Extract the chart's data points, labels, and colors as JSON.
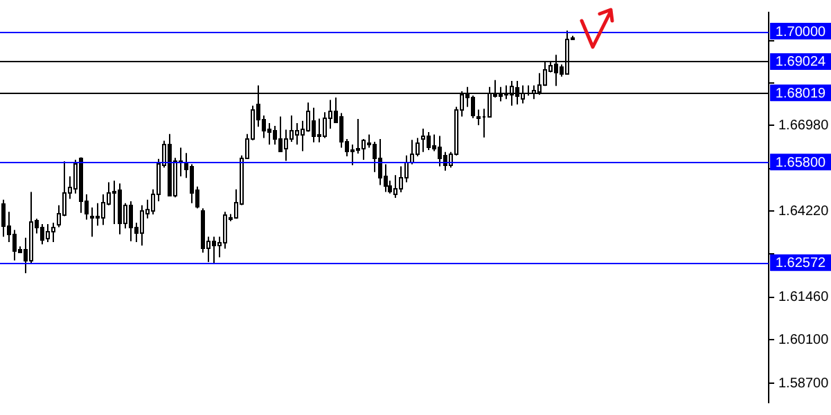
{
  "chart_data": {
    "type": "candlestick",
    "categories": [
      null,
      null,
      null,
      null,
      null,
      null,
      null,
      null,
      null,
      null,
      null,
      null,
      null,
      null,
      null,
      null,
      null,
      null,
      null,
      null,
      null,
      null,
      null,
      null,
      null,
      null,
      null,
      null,
      null,
      null,
      null,
      null,
      null,
      null,
      null,
      null,
      null,
      null,
      null,
      null,
      null,
      null,
      null,
      null,
      null,
      null,
      null,
      null,
      null,
      null,
      null,
      null,
      null,
      null,
      null,
      null,
      null,
      null,
      null,
      null,
      null,
      null,
      null,
      null,
      null,
      null,
      null,
      null,
      null,
      null,
      null,
      null,
      null,
      null,
      null,
      null,
      null,
      null,
      null,
      null,
      null,
      null,
      null,
      null,
      null,
      null,
      null,
      null,
      null,
      null,
      null,
      null,
      null,
      null,
      null,
      null,
      null,
      null,
      null,
      null,
      null,
      null,
      null,
      null,
      null,
      null,
      null,
      null,
      null,
      null,
      null,
      null,
      null,
      null,
      null,
      null,
      null,
      null,
      null,
      null,
      null,
      null,
      null,
      null,
      null,
      null,
      null,
      null,
      null,
      null,
      null,
      null,
      null,
      null,
      null,
      null,
      null,
      null,
      null
    ],
    "ohlc": [
      [
        1.6448,
        1.6459,
        1.634,
        1.6378
      ],
      [
        1.6376,
        1.642,
        1.6323,
        1.6348
      ],
      [
        1.6351,
        1.6362,
        1.6264,
        1.6298
      ],
      [
        1.6301,
        1.6309,
        1.6288,
        1.6292
      ],
      [
        1.6301,
        1.6337,
        1.6223,
        1.6264
      ],
      [
        1.6264,
        1.6484,
        1.6256,
        1.639
      ],
      [
        1.6392,
        1.6398,
        1.6351,
        1.637
      ],
      [
        1.637,
        1.6381,
        1.6316,
        1.6334
      ],
      [
        1.6337,
        1.6381,
        1.6323,
        1.6358
      ],
      [
        1.6358,
        1.6385,
        1.6323,
        1.6371
      ],
      [
        1.6381,
        1.6441,
        1.6371,
        1.6417
      ],
      [
        1.6412,
        1.6582,
        1.6406,
        1.6484
      ],
      [
        1.6481,
        1.6534,
        1.6462,
        1.6501
      ],
      [
        1.6498,
        1.6587,
        1.6479,
        1.6576
      ],
      [
        1.6595,
        1.6595,
        1.6417,
        1.6454
      ],
      [
        1.6454,
        1.6476,
        1.6395,
        1.6417
      ],
      [
        1.6409,
        1.6434,
        1.634,
        1.6403
      ],
      [
        1.6403,
        1.6448,
        1.6376,
        1.6409
      ],
      [
        1.6403,
        1.6476,
        1.6378,
        1.6451
      ],
      [
        1.6448,
        1.6515,
        1.6441,
        1.6484
      ],
      [
        1.6481,
        1.652,
        1.6381,
        1.6487
      ],
      [
        1.649,
        1.6511,
        1.6348,
        1.6387
      ],
      [
        1.6387,
        1.6448,
        1.6367,
        1.6442
      ],
      [
        1.6442,
        1.6454,
        1.6326,
        1.637
      ],
      [
        1.6373,
        1.6385,
        1.6323,
        1.6353
      ],
      [
        1.6353,
        1.6441,
        1.6312,
        1.6426
      ],
      [
        1.6417,
        1.6459,
        1.6399,
        1.6431
      ],
      [
        1.6426,
        1.6492,
        1.6412,
        1.6479
      ],
      [
        1.6479,
        1.659,
        1.6454,
        1.6576
      ],
      [
        1.6573,
        1.6648,
        1.6562,
        1.664
      ],
      [
        1.664,
        1.667,
        1.6476,
        1.6476
      ],
      [
        1.6476,
        1.6593,
        1.6467,
        1.6587
      ],
      [
        1.6587,
        1.6626,
        1.6534,
        1.6579
      ],
      [
        1.6582,
        1.6609,
        1.6529,
        1.6559
      ],
      [
        1.6565,
        1.6573,
        1.6448,
        1.6484
      ],
      [
        1.649,
        1.6501,
        1.6431,
        1.644
      ],
      [
        1.6426,
        1.6431,
        1.6289,
        1.6306
      ],
      [
        1.6306,
        1.634,
        1.6259,
        1.6328
      ],
      [
        1.6328,
        1.634,
        1.6253,
        1.6312
      ],
      [
        1.6312,
        1.634,
        1.6274,
        1.6323
      ],
      [
        1.6323,
        1.642,
        1.6302,
        1.6412
      ],
      [
        1.6398,
        1.6413,
        1.639,
        1.6403
      ],
      [
        1.6403,
        1.6492,
        1.6398,
        1.6451
      ],
      [
        1.6448,
        1.6601,
        1.6442,
        1.6595
      ],
      [
        1.6595,
        1.667,
        1.6593,
        1.6657
      ],
      [
        1.6657,
        1.6761,
        1.665,
        1.6751
      ],
      [
        1.6768,
        1.6826,
        1.6693,
        1.6718
      ],
      [
        1.6718,
        1.6729,
        1.6657,
        1.6682
      ],
      [
        1.6687,
        1.6705,
        1.6636,
        1.6676
      ],
      [
        1.6682,
        1.6696,
        1.6636,
        1.6654
      ],
      [
        1.6657,
        1.6726,
        1.6612,
        1.6615
      ],
      [
        1.6626,
        1.6684,
        1.6584,
        1.6657
      ],
      [
        1.6657,
        1.6729,
        1.6645,
        1.6684
      ],
      [
        1.6668,
        1.6705,
        1.6636,
        1.6684
      ],
      [
        1.6668,
        1.6712,
        1.6615,
        1.6687
      ],
      [
        1.6684,
        1.6771,
        1.6677,
        1.6743
      ],
      [
        1.6712,
        1.6754,
        1.6643,
        1.6664
      ],
      [
        1.6664,
        1.6719,
        1.6643,
        1.6668
      ],
      [
        1.6665,
        1.674,
        1.6657,
        1.6721
      ],
      [
        1.6721,
        1.6779,
        1.6687,
        1.6743
      ],
      [
        1.6743,
        1.6787,
        1.6705,
        1.6709
      ],
      [
        1.6726,
        1.6737,
        1.6626,
        1.6645
      ],
      [
        1.6645,
        1.6654,
        1.6598,
        1.6618
      ],
      [
        1.662,
        1.6636,
        1.657,
        1.6615
      ],
      [
        1.662,
        1.6718,
        1.6607,
        1.6626
      ],
      [
        1.6623,
        1.6654,
        1.6587,
        1.665
      ],
      [
        1.6643,
        1.6668,
        1.6626,
        1.6637
      ],
      [
        1.6637,
        1.6645,
        1.6548,
        1.6594
      ],
      [
        1.6594,
        1.6654,
        1.6506,
        1.6531
      ],
      [
        1.6534,
        1.6573,
        1.6484,
        1.6506
      ],
      [
        1.6506,
        1.652,
        1.6479,
        1.6487
      ],
      [
        1.6479,
        1.6538,
        1.6465,
        1.6498
      ],
      [
        1.6498,
        1.6566,
        1.6483,
        1.6531
      ],
      [
        1.6531,
        1.6601,
        1.6515,
        1.6579
      ],
      [
        1.6579,
        1.6651,
        1.6573,
        1.6609
      ],
      [
        1.6607,
        1.6657,
        1.6598,
        1.6643
      ],
      [
        1.6657,
        1.6687,
        1.6612,
        1.6664
      ],
      [
        1.6664,
        1.6676,
        1.6618,
        1.6629
      ],
      [
        1.6632,
        1.6668,
        1.6615,
        1.6626
      ],
      [
        1.6629,
        1.6664,
        1.6566,
        1.6595
      ],
      [
        1.6601,
        1.6612,
        1.6552,
        1.6573
      ],
      [
        1.657,
        1.6612,
        1.6562,
        1.6607
      ],
      [
        1.6607,
        1.6757,
        1.6601,
        1.6751
      ],
      [
        1.6751,
        1.6807,
        1.6726,
        1.6796
      ],
      [
        1.6799,
        1.6821,
        1.6757,
        1.6787
      ],
      [
        1.6787,
        1.6793,
        1.6721,
        1.6732
      ],
      [
        1.6721,
        1.6748,
        1.6698,
        1.6729
      ],
      [
        1.6726,
        1.6751,
        1.6659,
        1.6729
      ],
      [
        1.6726,
        1.6821,
        1.6723,
        1.6801
      ],
      [
        1.6801,
        1.6843,
        1.6787,
        1.6793
      ],
      [
        1.6793,
        1.6821,
        1.6775,
        1.6799
      ],
      [
        1.6801,
        1.6826,
        1.6782,
        1.6796
      ],
      [
        1.6796,
        1.684,
        1.6761,
        1.6824
      ],
      [
        1.6821,
        1.684,
        1.6765,
        1.6793
      ],
      [
        1.6785,
        1.6826,
        1.6768,
        1.6804
      ],
      [
        1.6801,
        1.6826,
        1.6793,
        1.6804
      ],
      [
        1.6804,
        1.6826,
        1.6782,
        1.681
      ],
      [
        1.6807,
        1.6865,
        1.6796,
        1.6831
      ],
      [
        1.6829,
        1.69,
        1.6824,
        1.6876
      ],
      [
        1.6874,
        1.6904,
        1.6868,
        1.6893
      ],
      [
        1.6896,
        1.6924,
        1.6824,
        1.6871
      ],
      [
        1.6888,
        1.6893,
        1.6854,
        1.6865
      ],
      [
        1.6865,
        1.7002,
        1.6865,
        1.6977
      ],
      [
        1.6977,
        1.6985,
        1.6971,
        1.6979
      ],
      null,
      null,
      null,
      null,
      null,
      null,
      null,
      null,
      null,
      null,
      null,
      null,
      null,
      null,
      null,
      null,
      null,
      null,
      null,
      null,
      null,
      null,
      null,
      null,
      null,
      null,
      null,
      null,
      null,
      null,
      null,
      null,
      null,
      null,
      null
    ],
    "ylim": [
      1.5808,
      1.706
    ],
    "yticks": [
      {
        "value": 1.587,
        "label": "1.58700"
      },
      {
        "value": 1.601,
        "label": "1.60100"
      },
      {
        "value": 1.6146,
        "label": "1.61460"
      },
      {
        "value": 1.6286,
        "label": null
      },
      {
        "value": 1.6422,
        "label": "1.64220"
      },
      {
        "value": 1.6558,
        "label": null
      },
      {
        "value": 1.6698,
        "label": "1.66980"
      },
      {
        "value": 1.6834,
        "label": null
      },
      {
        "value": 1.697,
        "label": null
      }
    ],
    "ref_lines": [
      {
        "axis": "y",
        "value": 1.7,
        "label": "1.70000",
        "color": "#0000ff"
      },
      {
        "axis": "y",
        "value": 1.69024,
        "label": "1.69024",
        "color": "#000000"
      },
      {
        "axis": "y",
        "value": 1.68019,
        "label": "1.68019",
        "color": "#000000"
      },
      {
        "axis": "y",
        "value": 1.658,
        "label": "1.65800",
        "color": "#0000ff"
      },
      {
        "axis": "y",
        "value": 1.62572,
        "label": "1.62572",
        "color": "#0000ff"
      }
    ],
    "tick_labels": "y",
    "grid": false,
    "legend": false
  }
}
